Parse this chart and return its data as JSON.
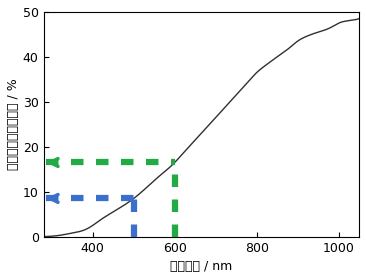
{
  "x_start": 280,
  "x_end": 1050,
  "xlim": [
    280,
    1050
  ],
  "ylim": [
    0,
    50
  ],
  "xticks": [
    400,
    600,
    800,
    1000
  ],
  "yticks": [
    0,
    10,
    20,
    30,
    40,
    50
  ],
  "xlabel": "応答波長 / nm",
  "ylabel": "エネルギー変換効率 / %",
  "line_color": "#303030",
  "line_width": 1.0,
  "blue_x": 500,
  "blue_y": 8.5,
  "green_x": 600,
  "green_y": 16.5,
  "blue_color": "#3B6FCC",
  "green_color": "#22AA44",
  "dot_linewidth": 2.5,
  "figsize": [
    3.66,
    2.8
  ],
  "dpi": 100,
  "curve_points_x": [
    280,
    300,
    320,
    350,
    380,
    400,
    420,
    450,
    480,
    500,
    520,
    550,
    580,
    600,
    620,
    650,
    680,
    700,
    720,
    750,
    780,
    800,
    820,
    850,
    880,
    900,
    920,
    950,
    980,
    1000,
    1020,
    1050
  ],
  "curve_points_y": [
    0.0,
    0.1,
    0.3,
    0.8,
    1.5,
    2.5,
    3.8,
    5.5,
    7.2,
    8.5,
    10.0,
    12.5,
    14.8,
    16.5,
    18.5,
    21.5,
    24.5,
    26.5,
    28.5,
    31.5,
    34.5,
    36.5,
    38.0,
    40.0,
    42.0,
    43.5,
    44.5,
    45.5,
    46.5,
    47.5,
    48.0,
    48.5
  ]
}
